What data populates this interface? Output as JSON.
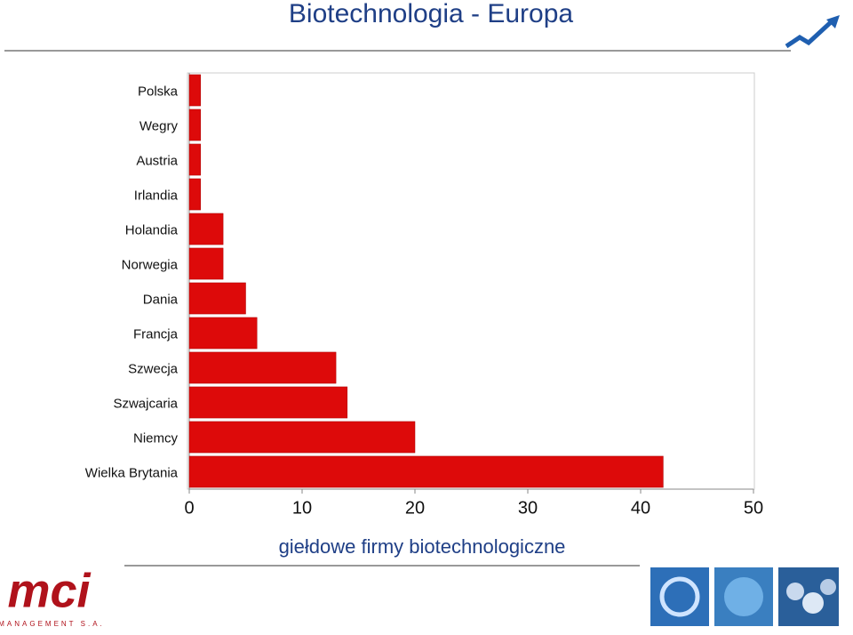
{
  "chart_data": {
    "type": "barh",
    "title": "Biotechnologia - Europa",
    "x_label": "giełdowe firmy biotechnologiczne",
    "categories": [
      "Polska",
      "Wegry",
      "Austria",
      "Irlandia",
      "Holandia",
      "Norwegia",
      "Dania",
      "Francja",
      "Szwecja",
      "Szwajcaria",
      "Niemcy",
      "Wielka Brytania"
    ],
    "values": [
      1,
      1,
      1,
      1,
      3,
      3,
      5,
      6,
      13,
      14,
      20,
      42
    ],
    "color": "#dd0a0a",
    "xlim": [
      0,
      50
    ],
    "xticks": [
      0,
      10,
      20,
      30,
      40,
      50
    ],
    "grid": false
  },
  "logo": {
    "text": "mci",
    "subtext": "MANAGEMENT S.A."
  }
}
